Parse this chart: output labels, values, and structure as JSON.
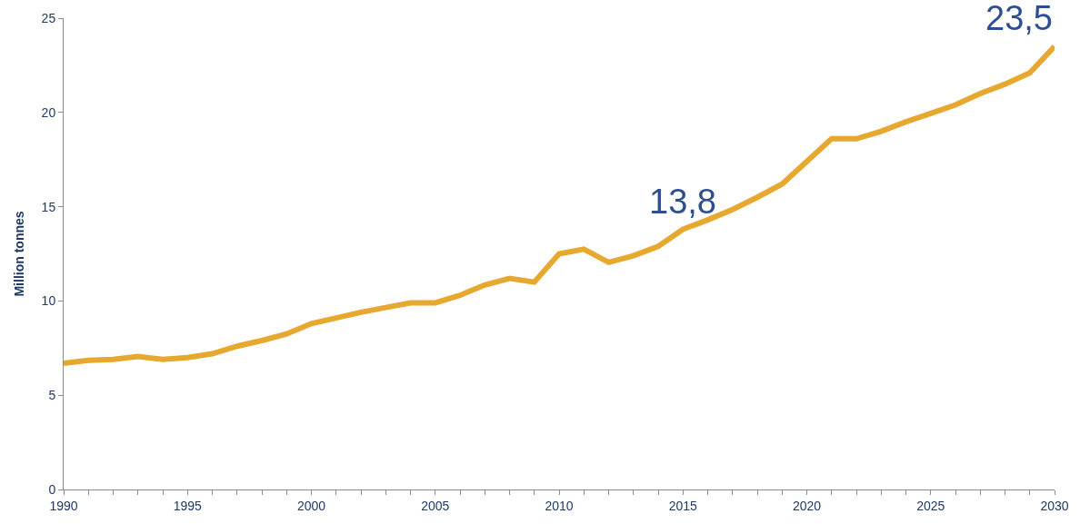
{
  "chart_data": {
    "type": "line",
    "ylabel": "Million tonnes",
    "x": [
      1990,
      1991,
      1992,
      1993,
      1994,
      1995,
      1996,
      1997,
      1998,
      1999,
      2000,
      2001,
      2002,
      2003,
      2004,
      2005,
      2006,
      2007,
      2008,
      2009,
      2010,
      2011,
      2012,
      2013,
      2014,
      2015,
      2016,
      2017,
      2018,
      2019,
      2020,
      2021,
      2022,
      2023,
      2024,
      2025,
      2026,
      2027,
      2028,
      2029,
      2030
    ],
    "series": [
      {
        "color": "#e6a82e",
        "values": [
          6.7,
          6.85,
          6.9,
          7.05,
          6.9,
          7.0,
          7.2,
          7.6,
          7.9,
          8.25,
          8.8,
          9.1,
          9.4,
          9.65,
          9.9,
          9.9,
          10.3,
          10.85,
          11.2,
          11.0,
          12.5,
          12.75,
          12.05,
          12.4,
          12.9,
          13.8,
          14.3,
          14.85,
          15.5,
          16.2,
          17.4,
          18.6,
          18.6,
          19.0,
          19.5,
          19.95,
          20.4,
          21.0,
          21.5,
          22.1,
          23.5
        ]
      }
    ],
    "xlim": [
      1990,
      2030
    ],
    "xticks": [
      1990,
      {
        "value": 1991,
        "label": null
      },
      {
        "value": 1992,
        "label": null
      },
      {
        "value": 1993,
        "label": null
      },
      {
        "value": 1994,
        "label": null
      },
      1995,
      {
        "value": 1996,
        "label": null
      },
      {
        "value": 1997,
        "label": null
      },
      {
        "value": 1998,
        "label": null
      },
      {
        "value": 1999,
        "label": null
      },
      2000,
      {
        "value": 2001,
        "label": null
      },
      {
        "value": 2002,
        "label": null
      },
      {
        "value": 2003,
        "label": null
      },
      {
        "value": 2004,
        "label": null
      },
      2005,
      {
        "value": 2006,
        "label": null
      },
      {
        "value": 2007,
        "label": null
      },
      {
        "value": 2008,
        "label": null
      },
      {
        "value": 2009,
        "label": null
      },
      2010,
      {
        "value": 2011,
        "label": null
      },
      {
        "value": 2012,
        "label": null
      },
      {
        "value": 2013,
        "label": null
      },
      {
        "value": 2014,
        "label": null
      },
      2015,
      {
        "value": 2016,
        "label": null
      },
      {
        "value": 2017,
        "label": null
      },
      {
        "value": 2018,
        "label": null
      },
      {
        "value": 2019,
        "label": null
      },
      2020,
      {
        "value": 2021,
        "label": null
      },
      {
        "value": 2022,
        "label": null
      },
      {
        "value": 2023,
        "label": null
      },
      {
        "value": 2024,
        "label": null
      },
      2025,
      {
        "value": 2026,
        "label": null
      },
      {
        "value": 2027,
        "label": null
      },
      {
        "value": 2028,
        "label": null
      },
      {
        "value": 2029,
        "label": null
      },
      2030
    ],
    "ylim": [
      0,
      25
    ],
    "yticks": [
      0,
      5,
      10,
      15,
      20,
      25
    ],
    "marker": "none",
    "line_style": "solid",
    "annotations": [
      {
        "text": "13,8",
        "x": 2015,
        "y": 13.8
      },
      {
        "text": "23,5",
        "x": 2030,
        "y": 23.5
      }
    ]
  }
}
